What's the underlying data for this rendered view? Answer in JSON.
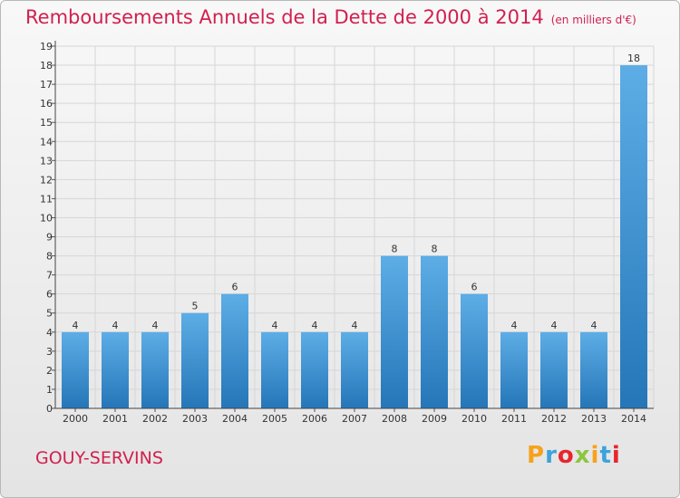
{
  "title": "Remboursements Annuels de la Dette de 2000 à 2014",
  "unit": "(en milliers d'€)",
  "commune": "GOUY-SERVINS",
  "logo": {
    "letters": [
      "P",
      "r",
      "o",
      "x",
      "i",
      "t",
      "i"
    ],
    "colors": [
      "#f7a21b",
      "#3ba3db",
      "#e8262e",
      "#8cc63f",
      "#f7a21b",
      "#3ba3db",
      "#e8262e"
    ]
  },
  "colors": {
    "accent": "#d1204f",
    "bar_top": "#5dade6",
    "bar_bottom": "#2576b8",
    "grid": "#d6d6d6"
  },
  "chart_data": {
    "type": "bar",
    "categories": [
      "2000",
      "2001",
      "2002",
      "2003",
      "2004",
      "2005",
      "2006",
      "2007",
      "2008",
      "2009",
      "2010",
      "2011",
      "2012",
      "2013",
      "2014"
    ],
    "values": [
      4,
      4,
      4,
      5,
      6,
      4,
      4,
      4,
      8,
      8,
      6,
      4,
      4,
      4,
      18
    ],
    "ylim": [
      0,
      19
    ],
    "yticks": [
      0,
      1,
      2,
      3,
      4,
      5,
      6,
      7,
      8,
      9,
      10,
      11,
      12,
      13,
      14,
      15,
      16,
      17,
      18,
      19
    ],
    "grid": true,
    "xlabel": "",
    "ylabel": ""
  }
}
